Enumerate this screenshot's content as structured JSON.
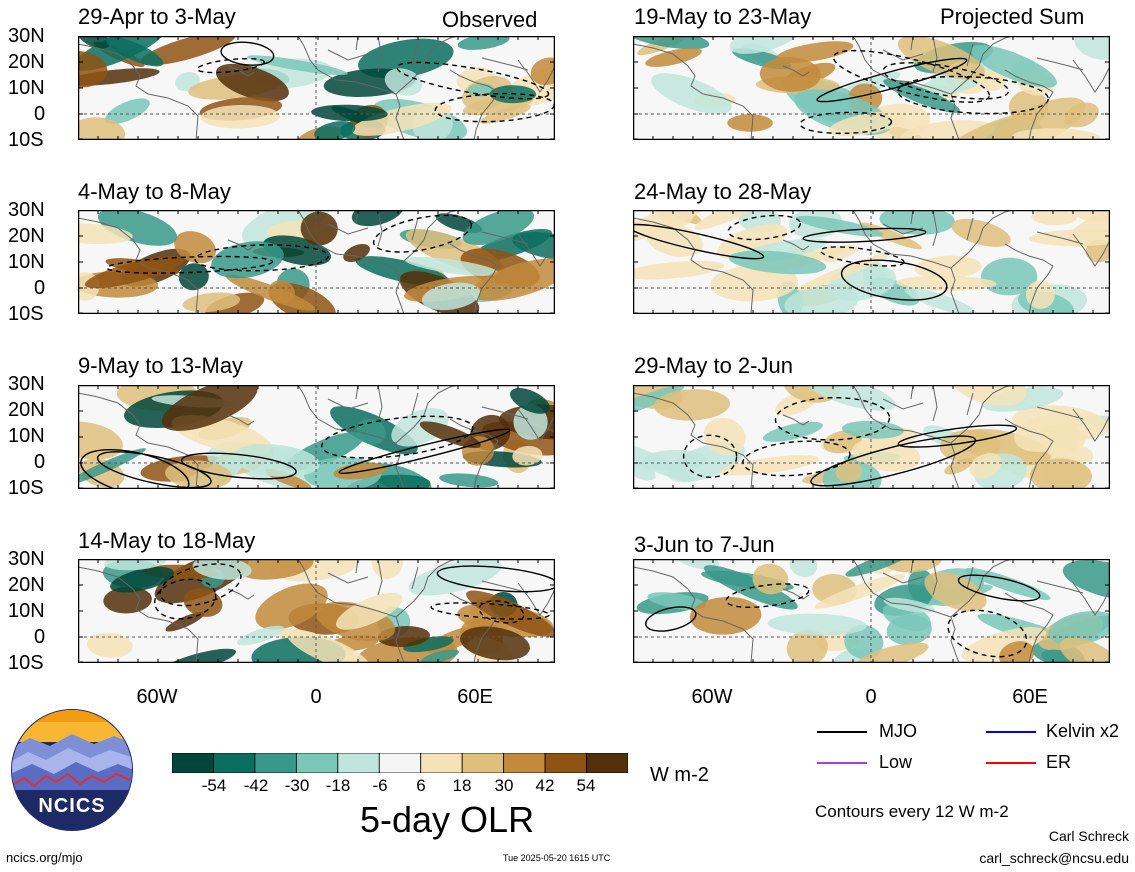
{
  "header": {
    "observed_label": "Observed",
    "projected_label": "Projected Sum"
  },
  "panels_observed": [
    {
      "title": "29-Apr to 3-May"
    },
    {
      "title": "4-May to 8-May"
    },
    {
      "title": "9-May to 13-May"
    },
    {
      "title": "14-May to 18-May"
    }
  ],
  "panels_projected": [
    {
      "title": "19-May to 23-May"
    },
    {
      "title": "24-May to 28-May"
    },
    {
      "title": "29-May to 2-Jun"
    },
    {
      "title": "3-Jun to 7-Jun"
    }
  ],
  "axes": {
    "lat_ticks": [
      "30N",
      "20N",
      "10N",
      "0",
      "10S"
    ],
    "lon_ticks": [
      "60W",
      "0",
      "60E"
    ]
  },
  "colorbar": {
    "labels": [
      "-54",
      "-42",
      "-30",
      "-18",
      "-6",
      "6",
      "18",
      "30",
      "42",
      "54"
    ],
    "colors": [
      "#00463a",
      "#0a6e5f",
      "#38998a",
      "#7ac7b8",
      "#bfe5dc",
      "#f5f5f5",
      "#f5e3b7",
      "#dec07c",
      "#c28a3b",
      "#8f5413",
      "#54300a"
    ],
    "units": "W m-2",
    "title": "5-day OLR"
  },
  "legend": {
    "mjo": "MJO",
    "kelvin": "Kelvin x2",
    "low": "Low",
    "er": "ER",
    "contours_note": "Contours every 12 W m-2",
    "colors": {
      "mjo": "#000000",
      "kelvin": "#0000ff",
      "low": "#a040e0",
      "er": "#ff0000"
    }
  },
  "footer": {
    "url": "ncics.org/mjo",
    "timestamp": "Tue 2025-05-20 1615 UTC",
    "author": "Carl Schreck",
    "email": "carl_schreck@ncsu.edu",
    "logo_text": "NCICS"
  },
  "chart_data": {
    "type": "heatmap",
    "title": "5-day OLR",
    "units": "W m-2",
    "x_range": [
      "90W",
      "100E"
    ],
    "y_range": [
      "10S",
      "30N"
    ],
    "levels": [
      -54,
      -42,
      -30,
      -18,
      -6,
      6,
      18,
      30,
      42,
      54
    ],
    "panels": [
      {
        "title": "29-Apr to 3-May",
        "kind": "Observed"
      },
      {
        "title": "4-May to 8-May",
        "kind": "Observed"
      },
      {
        "title": "9-May to 13-May",
        "kind": "Observed"
      },
      {
        "title": "14-May to 18-May",
        "kind": "Observed"
      },
      {
        "title": "19-May to 23-May",
        "kind": "Projected Sum"
      },
      {
        "title": "24-May to 28-May",
        "kind": "Projected Sum"
      },
      {
        "title": "29-May to 2-Jun",
        "kind": "Projected Sum"
      },
      {
        "title": "3-Jun to 7-Jun",
        "kind": "Projected Sum"
      }
    ]
  }
}
